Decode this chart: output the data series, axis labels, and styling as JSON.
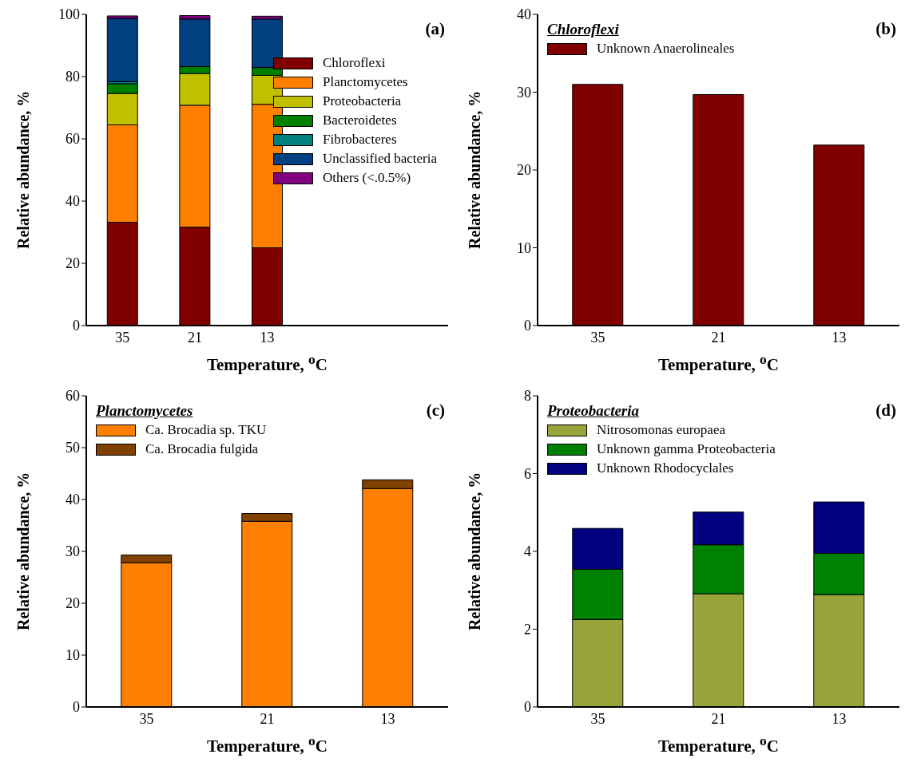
{
  "chart_data": [
    {
      "type": "bar",
      "title": "(a)",
      "xlabel": "Temperature, $^{o}$C",
      "ylabel": "Relative abundance, %",
      "categories": [
        "35",
        "21",
        "13",
        null,
        null
      ],
      "stacked": true,
      "legend": "top right",
      "ylim": [
        0,
        100
      ],
      "yticks": [
        0,
        20,
        40,
        60,
        80,
        100
      ],
      "series": [
        {
          "name": "Chloroflexi",
          "color": "#800000",
          "values": [
            33.2,
            31.6,
            25.0,
            null,
            null
          ]
        },
        {
          "name": "Planctomycetes",
          "color": "#ff8000",
          "values": [
            31.3,
            39.2,
            46.1,
            null,
            null
          ]
        },
        {
          "name": "Proteobacteria",
          "color": "#c0c000",
          "values": [
            10.1,
            10.2,
            9.3,
            null,
            null
          ]
        },
        {
          "name": "Bacteroidetes",
          "color": "#008000",
          "values": [
            3.1,
            2.2,
            2.5,
            null,
            null
          ]
        },
        {
          "name": "Fibrobacteres",
          "color": "#008080",
          "values": [
            0.7,
            null,
            null,
            null,
            null
          ]
        },
        {
          "name": "Unclassified bacteria",
          "color": "#004080",
          "values": [
            20.3,
            15.3,
            15.6,
            null,
            null
          ]
        },
        {
          "name": "Others (<.0.5%)",
          "color": "#800080",
          "values": [
            0.8,
            1.1,
            0.9,
            null,
            null
          ]
        }
      ]
    },
    {
      "type": "bar",
      "title": "(b)",
      "legend_title": "Chloroflexi",
      "xlabel": "Temperature, $^{o}$C",
      "ylabel": "Relative abundance, %",
      "categories": [
        "35",
        "21",
        "13"
      ],
      "legend": "top left",
      "ylim": [
        0,
        40
      ],
      "yticks": [
        0,
        10,
        20,
        30,
        40
      ],
      "series": [
        {
          "name": "Unknown Anaerolineales",
          "color": "#800000",
          "values": [
            31.0,
            29.7,
            23.2
          ]
        }
      ]
    },
    {
      "type": "bar",
      "title": "(c)",
      "legend_title": "Planctomycetes",
      "xlabel": "Temperature, $^{o}$C",
      "ylabel": "Relative abundance, %",
      "categories": [
        "35",
        "21",
        "13"
      ],
      "stacked": true,
      "legend": "top left",
      "ylim": [
        0,
        60
      ],
      "yticks": [
        0,
        10,
        20,
        30,
        40,
        50,
        60
      ],
      "series": [
        {
          "name": "Ca. Brocadia sp. TKU",
          "color": "#ff8000",
          "values": [
            27.8,
            35.8,
            42.1
          ]
        },
        {
          "name": "Ca. Brocadia fulgida",
          "color": "#804000",
          "values": [
            1.5,
            1.5,
            1.7
          ]
        }
      ]
    },
    {
      "type": "bar",
      "title": "(d)",
      "legend_title": "Proteobacteria",
      "xlabel": "Temperature, $^{o}$C",
      "ylabel": "Relative abundance, %",
      "categories": [
        "35",
        "21",
        "13"
      ],
      "stacked": true,
      "legend": "top left",
      "ylim": [
        0,
        8
      ],
      "yticks": [
        0,
        2,
        4,
        6,
        8
      ],
      "series": [
        {
          "name": "Nitrosomonas europaea",
          "color": "#99a43a",
          "values": [
            2.25,
            2.91,
            2.89
          ]
        },
        {
          "name": "Unknown gamma Proteobacteria",
          "color": "#008000",
          "values": [
            1.29,
            1.26,
            1.06
          ]
        },
        {
          "name": "Unknown Rhodocyclales",
          "color": "#000080",
          "values": [
            1.05,
            0.84,
            1.32
          ]
        }
      ]
    }
  ]
}
